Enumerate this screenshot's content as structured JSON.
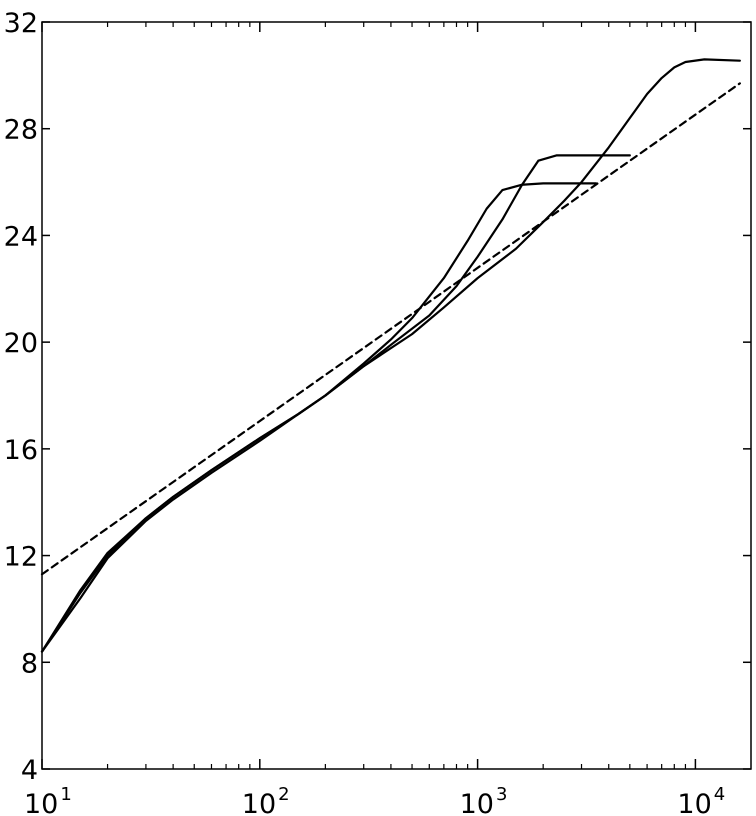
{
  "chart_data": {
    "type": "line",
    "title": "",
    "xlabel": "",
    "ylabel": "",
    "xscale": "log",
    "xlim": [
      10,
      18000
    ],
    "ylim": [
      4,
      32
    ],
    "grid": false,
    "x_ticks": [
      {
        "base": "10",
        "exp": "1",
        "value": 10
      },
      {
        "base": "10",
        "exp": "2",
        "value": 100
      },
      {
        "base": "10",
        "exp": "3",
        "value": 1000
      },
      {
        "base": "10",
        "exp": "4",
        "value": 10000
      }
    ],
    "y_ticks": [
      "4",
      "8",
      "12",
      "16",
      "20",
      "24",
      "28",
      "32"
    ],
    "series": [
      {
        "style": "solid",
        "color": "#000000",
        "points": [
          [
            10,
            8.4
          ],
          [
            15,
            10.7
          ],
          [
            20,
            12.1
          ],
          [
            30,
            13.4
          ],
          [
            40,
            14.2
          ],
          [
            60,
            15.2
          ],
          [
            100,
            16.4
          ],
          [
            150,
            17.3
          ],
          [
            200,
            18.0
          ],
          [
            300,
            19.2
          ],
          [
            400,
            20.1
          ],
          [
            500,
            20.9
          ],
          [
            700,
            22.4
          ],
          [
            900,
            23.8
          ],
          [
            1100,
            25.0
          ],
          [
            1300,
            25.7
          ],
          [
            1600,
            25.9
          ],
          [
            2000,
            25.95
          ],
          [
            3500,
            25.95
          ]
        ]
      },
      {
        "style": "solid",
        "color": "#000000",
        "points": [
          [
            10,
            8.4
          ],
          [
            15,
            10.6
          ],
          [
            20,
            12.0
          ],
          [
            30,
            13.4
          ],
          [
            40,
            14.2
          ],
          [
            60,
            15.2
          ],
          [
            100,
            16.4
          ],
          [
            150,
            17.3
          ],
          [
            200,
            18.0
          ],
          [
            300,
            19.1
          ],
          [
            400,
            19.9
          ],
          [
            600,
            21.0
          ],
          [
            800,
            22.1
          ],
          [
            1000,
            23.2
          ],
          [
            1300,
            24.6
          ],
          [
            1600,
            25.9
          ],
          [
            1900,
            26.8
          ],
          [
            2300,
            27.0
          ],
          [
            3000,
            27.0
          ],
          [
            5000,
            27.0
          ]
        ]
      },
      {
        "style": "solid",
        "color": "#000000",
        "points": [
          [
            10,
            8.4
          ],
          [
            15,
            10.4
          ],
          [
            20,
            11.9
          ],
          [
            30,
            13.3
          ],
          [
            40,
            14.1
          ],
          [
            60,
            15.1
          ],
          [
            100,
            16.3
          ],
          [
            150,
            17.3
          ],
          [
            200,
            18.0
          ],
          [
            300,
            19.1
          ],
          [
            500,
            20.3
          ],
          [
            700,
            21.3
          ],
          [
            1000,
            22.4
          ],
          [
            1500,
            23.5
          ],
          [
            2000,
            24.5
          ],
          [
            2500,
            25.3
          ],
          [
            3000,
            26.0
          ],
          [
            4000,
            27.3
          ],
          [
            5000,
            28.4
          ],
          [
            6000,
            29.3
          ],
          [
            7000,
            29.9
          ],
          [
            8000,
            30.3
          ],
          [
            9000,
            30.5
          ],
          [
            11000,
            30.6
          ],
          [
            16000,
            30.55
          ]
        ]
      },
      {
        "style": "dashed",
        "color": "#000000",
        "points": [
          [
            10,
            11.3
          ],
          [
            16000,
            29.7
          ]
        ]
      }
    ]
  }
}
